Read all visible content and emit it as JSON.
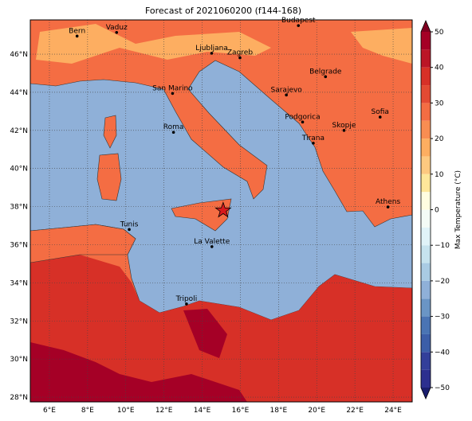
{
  "title": "Forecast of 2021060200 (f144-168)",
  "map": {
    "lon_range": [
      5,
      25
    ],
    "lat_range": [
      27.75,
      47.8
    ],
    "grid": true,
    "lon_ticks": [
      {
        "value": 6,
        "label": "6°E"
      },
      {
        "value": 8,
        "label": "8°E"
      },
      {
        "value": 10,
        "label": "10°E"
      },
      {
        "value": 12,
        "label": "12°E"
      },
      {
        "value": 14,
        "label": "14°E"
      },
      {
        "value": 16,
        "label": "16°E"
      },
      {
        "value": 18,
        "label": "18°E"
      },
      {
        "value": 20,
        "label": "20°E"
      },
      {
        "value": 22,
        "label": "22°E"
      },
      {
        "value": 24,
        "label": "24°E"
      }
    ],
    "lat_ticks": [
      {
        "value": 28,
        "label": "28°N"
      },
      {
        "value": 30,
        "label": "30°N"
      },
      {
        "value": 32,
        "label": "32°N"
      },
      {
        "value": 34,
        "label": "34°N"
      },
      {
        "value": 36,
        "label": "36°N"
      },
      {
        "value": 38,
        "label": "38°N"
      },
      {
        "value": 40,
        "label": "40°N"
      },
      {
        "value": 42,
        "label": "42°N"
      },
      {
        "value": 44,
        "label": "44°N"
      },
      {
        "value": 46,
        "label": "46°N"
      }
    ],
    "cities": [
      {
        "name": "Bern",
        "lon": 7.45,
        "lat": 46.95
      },
      {
        "name": "Vaduz",
        "lon": 9.52,
        "lat": 47.14
      },
      {
        "name": "Budapest",
        "lon": 19.04,
        "lat": 47.5
      },
      {
        "name": "Ljubljana",
        "lon": 14.5,
        "lat": 46.05
      },
      {
        "name": "Zagreb",
        "lon": 15.98,
        "lat": 45.81
      },
      {
        "name": "Belgrade",
        "lon": 20.46,
        "lat": 44.82
      },
      {
        "name": "San Marino",
        "lon": 12.45,
        "lat": 43.94
      },
      {
        "name": "Sarajevo",
        "lon": 18.41,
        "lat": 43.86
      },
      {
        "name": "Sofia",
        "lon": 23.32,
        "lat": 42.7
      },
      {
        "name": "Roma",
        "lon": 12.5,
        "lat": 41.9
      },
      {
        "name": "Podgorica",
        "lon": 19.26,
        "lat": 42.44
      },
      {
        "name": "Skopje",
        "lon": 21.43,
        "lat": 42.0
      },
      {
        "name": "Tirana",
        "lon": 19.82,
        "lat": 41.33
      },
      {
        "name": "Athens",
        "lon": 23.73,
        "lat": 37.98
      },
      {
        "name": "Tunis",
        "lon": 10.18,
        "lat": 36.8
      },
      {
        "name": "La Valette",
        "lon": 14.51,
        "lat": 35.9
      },
      {
        "name": "Tripoli",
        "lon": 13.18,
        "lat": 32.89
      }
    ],
    "marker": {
      "lon": 15.1,
      "lat": 37.8,
      "color": "#d7191c"
    }
  },
  "colorbar": {
    "label": "Max Temperature (°C)",
    "range": [
      -50,
      50
    ],
    "levels": [
      -50,
      -45,
      -40,
      -35,
      -30,
      -25,
      -20,
      -15,
      -10,
      -5,
      0,
      5,
      10,
      15,
      20,
      25,
      30,
      35,
      40,
      45,
      50
    ],
    "colors": [
      "#2c2f8f",
      "#333f9a",
      "#3c5ea8",
      "#4a74b4",
      "#6a95c5",
      "#8fb0d8",
      "#a9cbe3",
      "#c6e3ee",
      "#e0f3f8",
      "#f4fbf6",
      "#fffde0",
      "#fee79a",
      "#fdc980",
      "#fdae61",
      "#f88d52",
      "#f46d43",
      "#e34a33",
      "#d73027",
      "#bb1526",
      "#a50026"
    ],
    "under_color": "#1a1e6e",
    "over_color": "#7f0020",
    "ticks": [
      {
        "value": -50,
        "label": "−50"
      },
      {
        "value": -40,
        "label": "−40"
      },
      {
        "value": -30,
        "label": "−30"
      },
      {
        "value": -20,
        "label": "−20"
      },
      {
        "value": -10,
        "label": "−10"
      },
      0,
      10,
      20,
      30,
      40,
      50
    ]
  }
}
